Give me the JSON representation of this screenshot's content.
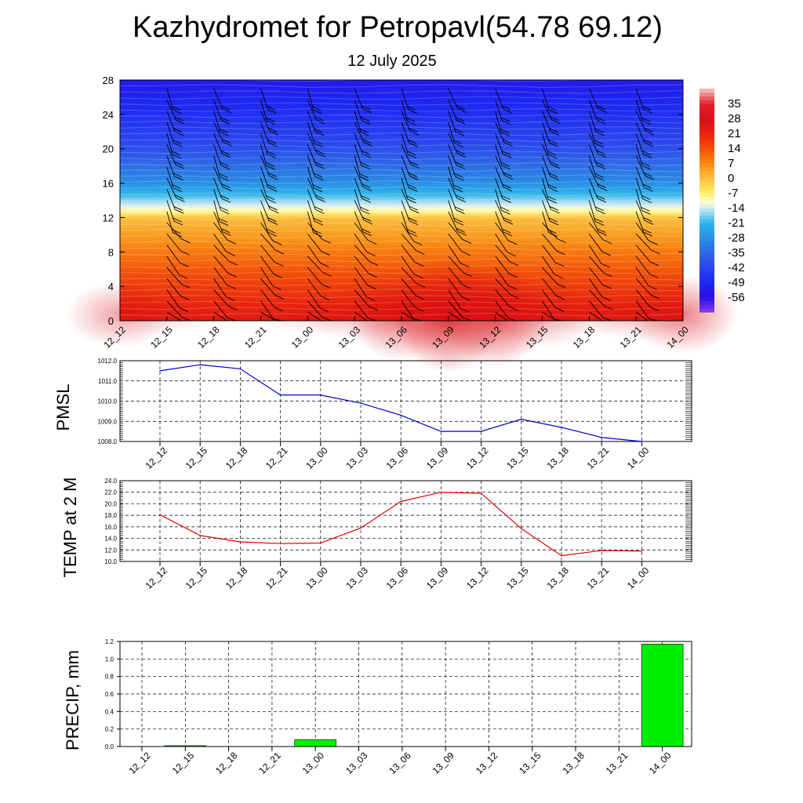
{
  "title": "Kazhydromet for Petropavl(54.78 69.12)",
  "subtitle": "12 July 2025",
  "chart_data": [
    {
      "type": "heatmap",
      "name": "temperature-wind-cross-section",
      "x_categories": [
        "12_12",
        "12_15",
        "12_18",
        "12_21",
        "13_00",
        "13_03",
        "13_06",
        "13_09",
        "13_12",
        "13_15",
        "13_18",
        "13_21",
        "14_00"
      ],
      "yticks": [
        0,
        4,
        8,
        12,
        16,
        20,
        24,
        28
      ],
      "ylim": [
        0,
        28
      ],
      "colorbar_labels": [
        "35",
        "28",
        "21",
        "14",
        "7",
        "0",
        "-7",
        "-14",
        "-21",
        "-28",
        "-35",
        "-42",
        "-49",
        "-56"
      ],
      "colorbar_range": [
        -63,
        42
      ],
      "color_stops": [
        {
          "v": 42,
          "c": "#f7c4c4"
        },
        {
          "v": 35,
          "c": "#e0202a"
        },
        {
          "v": 28,
          "c": "#d4101c"
        },
        {
          "v": 21,
          "c": "#e8240e"
        },
        {
          "v": 14,
          "c": "#f2500a"
        },
        {
          "v": 7,
          "c": "#f98a14"
        },
        {
          "v": 0,
          "c": "#fbc040"
        },
        {
          "v": -7,
          "c": "#fdf070"
        },
        {
          "v": -11,
          "c": "#fffad0"
        },
        {
          "v": -14,
          "c": "#cdeaf6"
        },
        {
          "v": -21,
          "c": "#2fb4ea"
        },
        {
          "v": -28,
          "c": "#2a8fe4"
        },
        {
          "v": -35,
          "c": "#2f68e6"
        },
        {
          "v": -42,
          "c": "#2a45ee"
        },
        {
          "v": -49,
          "c": "#1d28f2"
        },
        {
          "v": -56,
          "c": "#2a10e6"
        },
        {
          "v": -63,
          "c": "#8a40e8"
        }
      ],
      "temperature_profile": [
        {
          "y": 0,
          "t": 24
        },
        {
          "y": 4,
          "t": 17
        },
        {
          "y": 8,
          "t": 9
        },
        {
          "y": 12,
          "t": 0
        },
        {
          "y": 12.6,
          "t": -8
        },
        {
          "y": 13.5,
          "t": -14
        },
        {
          "y": 16,
          "t": -28
        },
        {
          "y": 20,
          "t": -40
        },
        {
          "y": 24,
          "t": -47
        },
        {
          "y": 28,
          "t": -53
        }
      ],
      "warm_anomaly_by_time": [
        3,
        1,
        0,
        0,
        1,
        2,
        5,
        7,
        6,
        3,
        1,
        2,
        4
      ]
    },
    {
      "type": "line",
      "name": "PMSL",
      "ylabel": "PMSL",
      "categories": [
        "12_12",
        "12_15",
        "12_18",
        "12_21",
        "13_00",
        "13_03",
        "13_06",
        "13_09",
        "13_12",
        "13_15",
        "13_18",
        "13_21",
        "14_00"
      ],
      "values": [
        1011.5,
        1011.8,
        1011.6,
        1010.3,
        1010.3,
        1009.9,
        1009.3,
        1008.5,
        1008.5,
        1009.1,
        1008.7,
        1008.2,
        1008.0
      ],
      "ylim": [
        1008.0,
        1012.0
      ],
      "yticks": [
        "1008.0",
        "1009.0",
        "1010.0",
        "1011.0",
        "1012.0"
      ],
      "line_color": "#0000cc",
      "grid": true
    },
    {
      "type": "line",
      "name": "TEMP at 2 M",
      "ylabel": "TEMP at 2 M",
      "categories": [
        "12_12",
        "12_15",
        "12_18",
        "12_21",
        "13_00",
        "13_03",
        "13_06",
        "13_09",
        "13_12",
        "13_15",
        "13_18",
        "13_21",
        "14_00"
      ],
      "values": [
        18.1,
        14.5,
        13.4,
        13.1,
        13.2,
        15.8,
        20.4,
        22.0,
        21.8,
        15.7,
        11.0,
        11.9,
        11.8
      ],
      "ylim": [
        10.0,
        24.0
      ],
      "yticks": [
        "10.0",
        "12.0",
        "14.0",
        "16.0",
        "18.0",
        "20.0",
        "22.0",
        "24.0"
      ],
      "line_color": "#e00000",
      "grid": true
    },
    {
      "type": "bar",
      "name": "PRECIP, mm",
      "ylabel": "PRECIP, mm",
      "categories": [
        "12_12",
        "12_15",
        "12_18",
        "12_21",
        "13_00",
        "13_03",
        "13_06",
        "13_09",
        "13_12",
        "13_15",
        "13_18",
        "13_21",
        "14_00"
      ],
      "values": [
        0,
        0.01,
        0,
        0,
        0.08,
        0,
        0,
        0,
        0,
        0,
        0,
        0,
        1.17
      ],
      "ylim": [
        0,
        1.2
      ],
      "yticks": [
        "0.0",
        "0.2",
        "0.4",
        "0.6",
        "0.8",
        "1.0",
        "1.2"
      ],
      "bar_color": "#00ee00",
      "grid": true
    }
  ]
}
